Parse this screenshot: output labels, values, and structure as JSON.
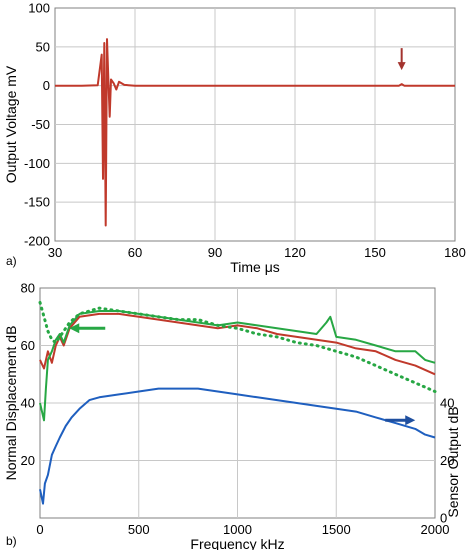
{
  "chart_data": [
    {
      "panel_label": "a)",
      "type": "line",
      "xlabel": "Time μs",
      "ylabel": "Output Voltage mV",
      "xlim": [
        30,
        180
      ],
      "ylim": [
        -200,
        100
      ],
      "x_ticks": [
        30,
        60,
        90,
        120,
        150,
        180
      ],
      "y_ticks": [
        -200,
        -150,
        -100,
        -50,
        0,
        50,
        100
      ],
      "x_tick_labels": [
        "30",
        "60",
        "90",
        "120",
        "150",
        "180"
      ],
      "y_tick_labels": [
        "-200",
        "-150",
        "-100",
        "-50",
        "0",
        "50",
        "100"
      ],
      "grid": true,
      "series": [
        {
          "color": "#c0392b",
          "x": [
            30,
            40,
            46,
            47.5,
            48,
            48.5,
            49,
            49.5,
            50,
            50.5,
            51,
            52,
            53,
            54,
            56,
            60,
            70,
            80,
            100,
            120,
            140,
            159,
            160,
            161,
            170,
            180
          ],
          "y": [
            0,
            0,
            0.5,
            40,
            -120,
            55,
            -180,
            60,
            10,
            -40,
            8,
            3,
            -5,
            5,
            1,
            0,
            0,
            0,
            0,
            0,
            0,
            0,
            2,
            0,
            0,
            0
          ]
        }
      ],
      "annotations": [
        {
          "type": "arrow-down",
          "x": 160,
          "y": 20,
          "color": "#a3332e"
        }
      ]
    },
    {
      "panel_label": "b)",
      "type": "line",
      "xlabel": "Frequency kHz",
      "ylabel": "Normal Displacement dB",
      "y2label": "Sensor Output dB",
      "xlim": [
        0,
        2000
      ],
      "ylim": [
        0,
        80
      ],
      "y2lim": [
        0,
        80
      ],
      "x_ticks": [
        0,
        500,
        1000,
        1500,
        2000
      ],
      "y_ticks": [
        20,
        40,
        60,
        80
      ],
      "y2_ticks": [
        0,
        20,
        40
      ],
      "x_tick_labels": [
        "0",
        "500",
        "1000",
        "1500",
        "2000"
      ],
      "y_tick_labels": [
        "20",
        "40",
        "60",
        "80"
      ],
      "y2_tick_labels": [
        "0",
        "20",
        "40"
      ],
      "grid": true,
      "series": [
        {
          "color": "#c0392b",
          "axis": "left",
          "x": [
            0,
            20,
            40,
            60,
            80,
            100,
            120,
            150,
            200,
            300,
            400,
            500,
            600,
            700,
            800,
            900,
            1000,
            1100,
            1200,
            1300,
            1400,
            1500,
            1600,
            1700,
            1800,
            1900,
            2000
          ],
          "y": [
            55,
            52,
            58,
            54,
            60,
            63,
            60,
            66,
            70,
            71,
            71,
            70,
            69,
            68,
            67,
            66,
            67,
            66,
            64,
            63,
            62,
            61,
            59,
            58,
            55,
            53,
            50
          ]
        },
        {
          "color": "#27a744",
          "axis": "left",
          "x": [
            0,
            20,
            30,
            40,
            60,
            80,
            100,
            120,
            150,
            200,
            300,
            400,
            500,
            600,
            700,
            800,
            900,
            1000,
            1100,
            1200,
            1300,
            1400,
            1450,
            1470,
            1500,
            1600,
            1700,
            1800,
            1900,
            1950,
            2000
          ],
          "y": [
            40,
            34,
            45,
            55,
            58,
            62,
            64,
            61,
            67,
            71,
            72,
            72,
            71,
            70,
            69,
            68,
            67,
            68,
            67,
            66,
            65,
            64,
            68,
            70,
            63,
            62,
            60,
            58,
            58,
            55,
            54
          ]
        },
        {
          "color": "#27a744",
          "axis": "left",
          "dashed": true,
          "x": [
            0,
            20,
            40,
            60,
            80,
            100,
            150,
            200,
            300,
            400,
            500,
            600,
            700,
            800,
            900,
            1000,
            1100,
            1200,
            1300,
            1400,
            1500,
            1600,
            1700,
            1800,
            1900,
            2000
          ],
          "y": [
            75,
            70,
            65,
            62,
            61,
            63,
            68,
            71,
            73,
            72,
            71,
            70,
            69,
            69,
            67,
            66,
            64,
            63,
            61,
            60,
            58,
            56,
            53,
            50,
            47,
            44
          ]
        },
        {
          "color": "#1f5fbf",
          "axis": "right",
          "x": [
            0,
            15,
            25,
            40,
            60,
            80,
            100,
            130,
            160,
            200,
            250,
            300,
            400,
            500,
            600,
            700,
            800,
            900,
            1000,
            1100,
            1200,
            1300,
            1400,
            1500,
            1600,
            1700,
            1800,
            1900,
            1950,
            2000
          ],
          "y": [
            10,
            5,
            12,
            15,
            22,
            25,
            28,
            32,
            35,
            38,
            41,
            42,
            43,
            44,
            45,
            45,
            45,
            44,
            43,
            42,
            41,
            40,
            39,
            38,
            37,
            35,
            33,
            31,
            29,
            28
          ]
        }
      ],
      "annotations": [
        {
          "type": "arrow-left",
          "x": 300,
          "y": 66,
          "color": "#27a744"
        },
        {
          "type": "arrow-right",
          "x": 1900,
          "y": 34,
          "color": "#1f4f9f"
        }
      ]
    }
  ]
}
